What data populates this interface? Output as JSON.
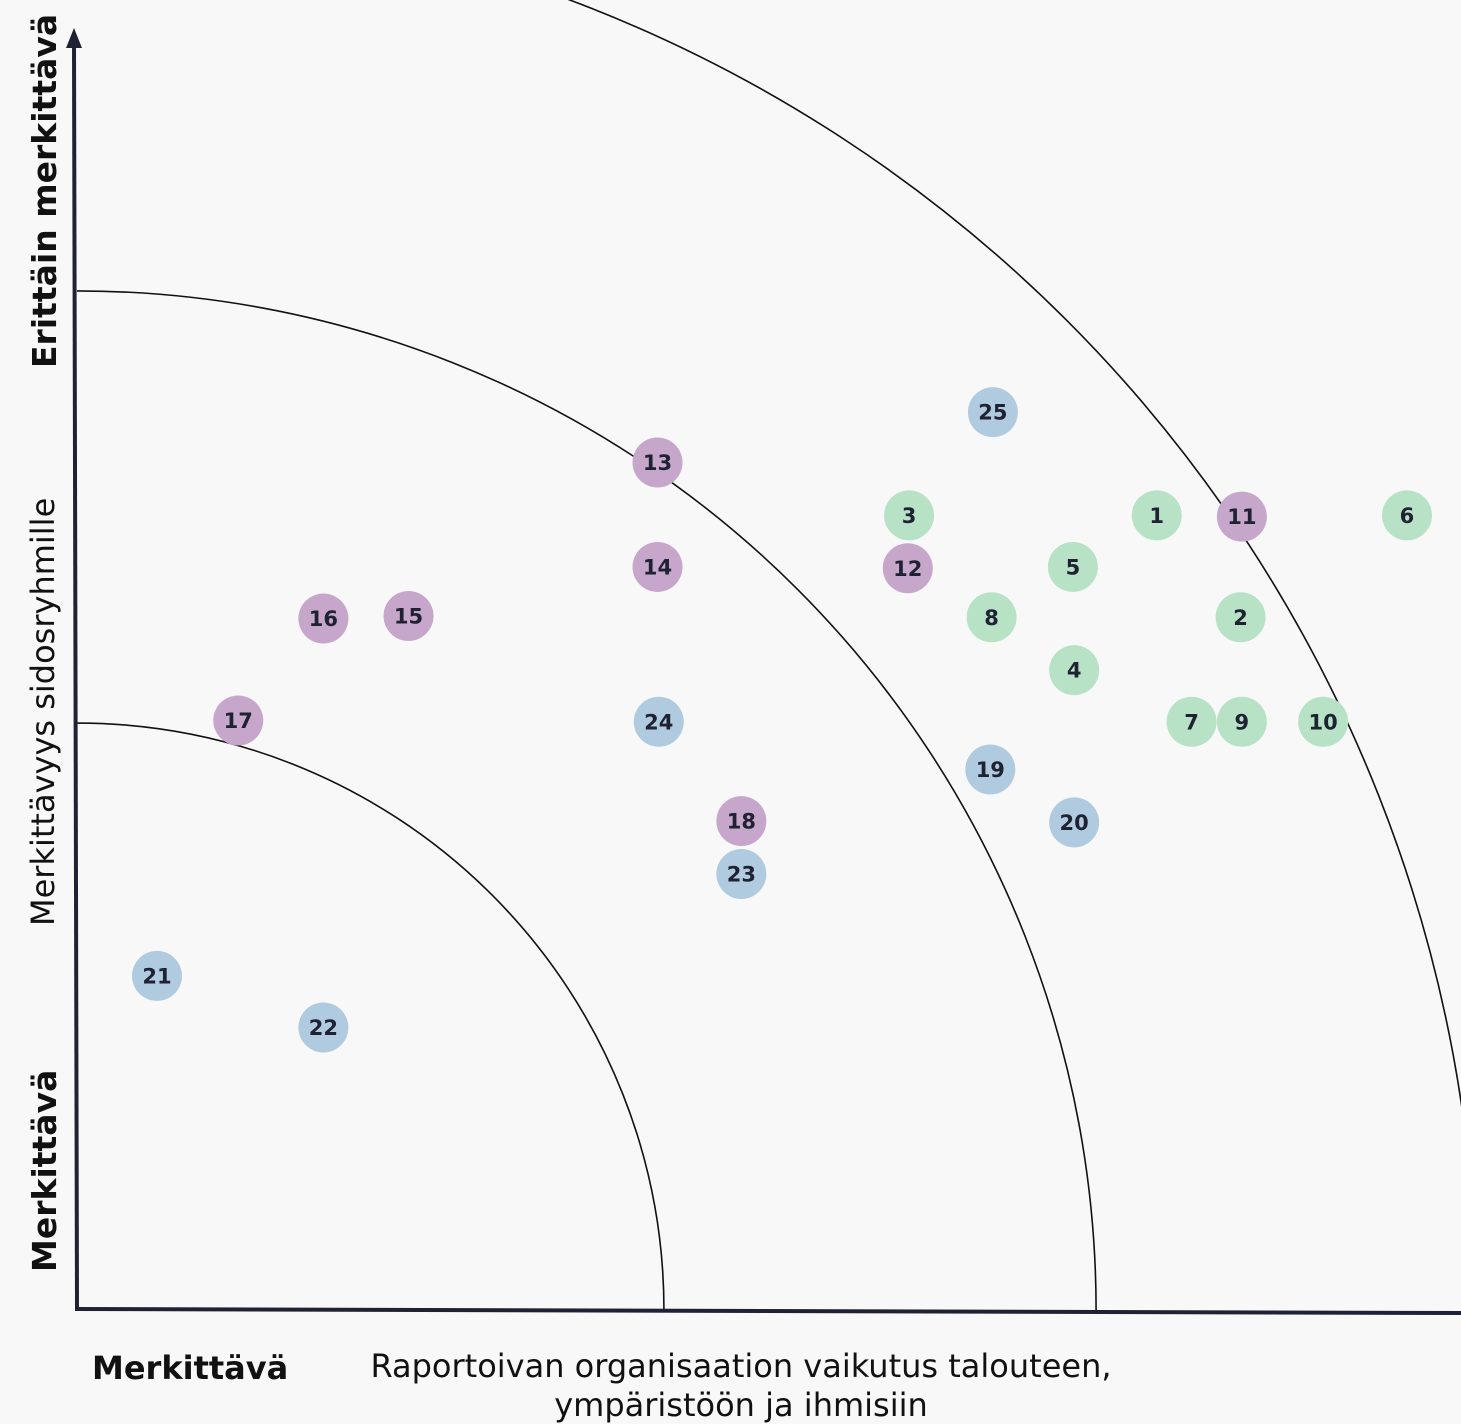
{
  "chart_data": {
    "type": "scatter",
    "xlabel": "Raportoivan organisaation vaikutus talouteen, ympäristöön ja ihmisiin",
    "xlabel_lines": [
      "Raportoivan organisaation vaikutus talouteen,",
      "ympäristöön ja ihmisiin"
    ],
    "x_min_label": "Merkittävä",
    "ylabel": "Merkittävyys sidosryhmille",
    "y_min_label": "Merkittävä",
    "y_max_label": "Erittäin merkittävä",
    "xlim": [
      0,
      100
    ],
    "ylim": [
      0,
      100
    ],
    "grid": false,
    "legend": "none",
    "zone_radii": [
      45.5,
      79,
      108.5
    ],
    "colors": {
      "green": "#b7e2c5",
      "purple": "#c7a6cc",
      "blue": "#b0cbdf",
      "axis": "#1f2233",
      "arc": "#111111",
      "background": "#f8f8f8"
    },
    "points": [
      {
        "label": "1",
        "x": 83.7,
        "y": 61.6,
        "color": "green"
      },
      {
        "label": "2",
        "x": 90.2,
        "y": 53.7,
        "color": "green"
      },
      {
        "label": "3",
        "x": 64.5,
        "y": 61.6,
        "color": "green"
      },
      {
        "label": "4",
        "x": 77.3,
        "y": 49.6,
        "color": "green"
      },
      {
        "label": "5",
        "x": 77.2,
        "y": 57.6,
        "color": "green"
      },
      {
        "label": "6",
        "x": 103.1,
        "y": 61.6,
        "color": "green"
      },
      {
        "label": "7",
        "x": 86.4,
        "y": 45.6,
        "color": "green"
      },
      {
        "label": "8",
        "x": 70.9,
        "y": 53.7,
        "color": "green"
      },
      {
        "label": "9",
        "x": 90.3,
        "y": 45.6,
        "color": "green"
      },
      {
        "label": "10",
        "x": 96.6,
        "y": 45.6,
        "color": "green"
      },
      {
        "label": "11",
        "x": 90.3,
        "y": 61.5,
        "color": "purple"
      },
      {
        "label": "12",
        "x": 64.4,
        "y": 57.5,
        "color": "purple"
      },
      {
        "label": "13",
        "x": 45.0,
        "y": 65.7,
        "color": "purple"
      },
      {
        "label": "14",
        "x": 45.0,
        "y": 57.6,
        "color": "purple"
      },
      {
        "label": "15",
        "x": 25.7,
        "y": 53.8,
        "color": "purple"
      },
      {
        "label": "16",
        "x": 19.1,
        "y": 53.6,
        "color": "purple"
      },
      {
        "label": "17",
        "x": 12.5,
        "y": 45.7,
        "color": "purple"
      },
      {
        "label": "18",
        "x": 51.5,
        "y": 37.9,
        "color": "purple"
      },
      {
        "label": "19",
        "x": 70.8,
        "y": 41.9,
        "color": "blue"
      },
      {
        "label": "20",
        "x": 77.3,
        "y": 37.8,
        "color": "blue"
      },
      {
        "label": "21",
        "x": 6.2,
        "y": 25.9,
        "color": "blue"
      },
      {
        "label": "22",
        "x": 19.1,
        "y": 21.9,
        "color": "blue"
      },
      {
        "label": "23",
        "x": 51.5,
        "y": 33.8,
        "color": "blue"
      },
      {
        "label": "24",
        "x": 45.1,
        "y": 45.6,
        "color": "blue"
      },
      {
        "label": "25",
        "x": 71.0,
        "y": 69.6,
        "color": "blue"
      }
    ]
  }
}
